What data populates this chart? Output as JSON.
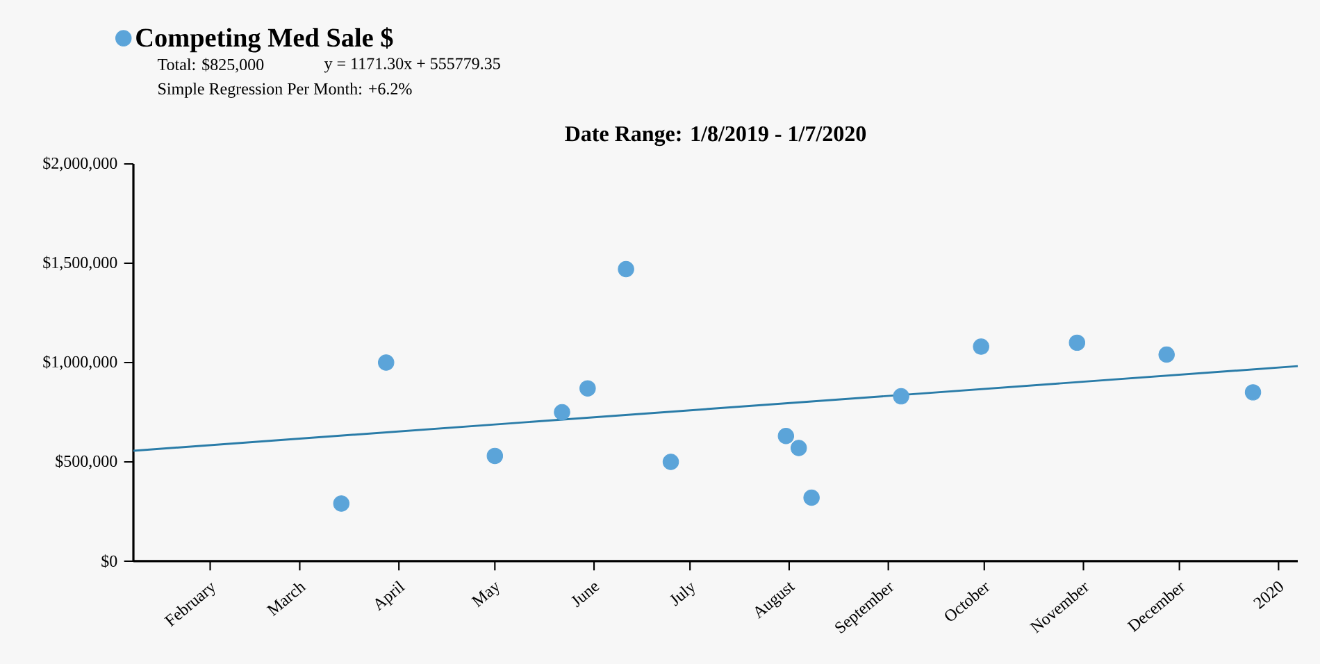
{
  "chart_data": {
    "type": "scatter",
    "title": "Date Range: 1/8/2019 - 1/7/2020",
    "annotations": [
      "Total: $825,000",
      "y = 1171.30x + 555779.35",
      "Simple Regression Per Month: +6.2%"
    ],
    "xlim": [
      "2019-01-08",
      "2020-01-07"
    ],
    "xticks": [
      {
        "value": "2019-02-01",
        "label": "February"
      },
      {
        "value": "2019-03-01",
        "label": "March"
      },
      {
        "value": "2019-04-01",
        "label": "April"
      },
      {
        "value": "2019-05-01",
        "label": "May"
      },
      {
        "value": "2019-06-01",
        "label": "June"
      },
      {
        "value": "2019-07-01",
        "label": "July"
      },
      {
        "value": "2019-08-01",
        "label": "August"
      },
      {
        "value": "2019-09-01",
        "label": "September"
      },
      {
        "value": "2019-10-01",
        "label": "October"
      },
      {
        "value": "2019-11-01",
        "label": "November"
      },
      {
        "value": "2019-12-01",
        "label": "December"
      },
      {
        "value": "2020-01-01",
        "label": "2020"
      }
    ],
    "ylim": [
      0,
      2000000
    ],
    "yticks": [
      {
        "value": 0,
        "label": "$0"
      },
      {
        "value": 500000,
        "label": "$500,000"
      },
      {
        "value": 1000000,
        "label": "$1,000,000"
      },
      {
        "value": 1500000,
        "label": "$1,500,000"
      },
      {
        "value": 2000000,
        "label": "$2,000,000"
      }
    ],
    "grid": false,
    "legend": "top left",
    "series": [
      {
        "name": "Competing Med Sale $",
        "marker": "circle",
        "color": "#5ba4d9",
        "x": [
          "2019-03-14",
          "2019-03-28",
          "2019-05-01",
          "2019-05-22",
          "2019-05-30",
          "2019-06-11",
          "2019-06-25",
          "2019-07-31",
          "2019-08-04",
          "2019-08-08",
          "2019-09-05",
          "2019-09-30",
          "2019-10-30",
          "2019-11-27",
          "2019-12-24"
        ],
        "values": [
          290000,
          1000000,
          530000,
          750000,
          870000,
          1470000,
          500000,
          630000,
          570000,
          320000,
          830000,
          1080000,
          1100000,
          1040000,
          850000
        ]
      },
      {
        "type": "line",
        "marker": "none",
        "line_style": "solid",
        "color": "#2a7ca8",
        "x": [
          "2019-01-08",
          "2020-01-07"
        ],
        "values": [
          556000,
          982000
        ]
      }
    ]
  }
}
